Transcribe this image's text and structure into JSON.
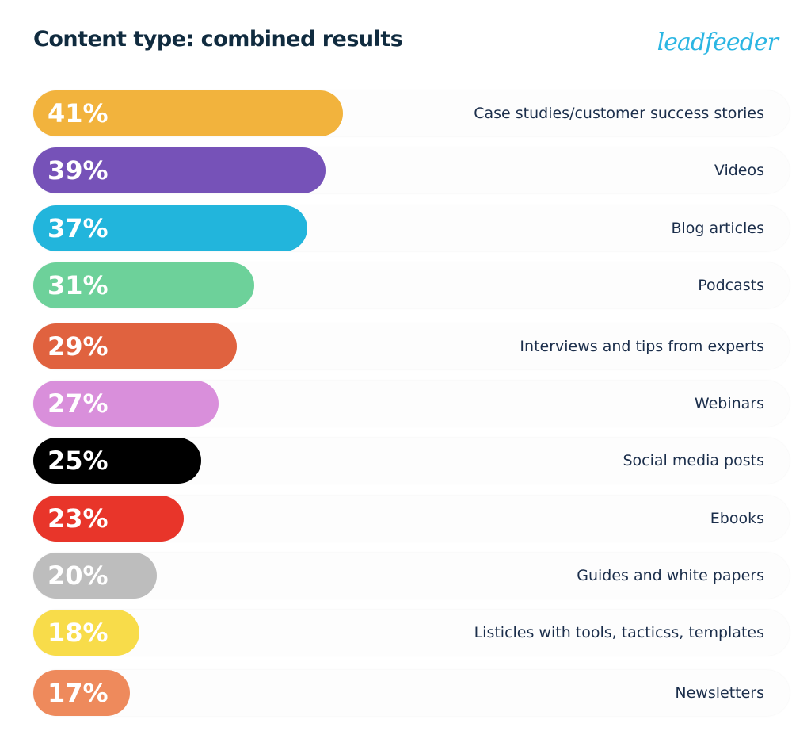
{
  "chart_data": {
    "type": "bar",
    "orientation": "horizontal",
    "title": "Content type: combined results",
    "logo_text": "leadfeeder",
    "categories": [
      "Case studies/customer success stories",
      "Videos",
      "Blog articles",
      "Podcasts",
      "Interviews and tips from experts",
      "Webinars",
      "Social media posts",
      "Ebooks",
      "Guides and white papers",
      "Listicles with tools, tacticss, templates",
      "Newsletters"
    ],
    "values": [
      41,
      39,
      37,
      31,
      29,
      27,
      25,
      23,
      20,
      18,
      17
    ],
    "labels": [
      "41%",
      "39%",
      "37%",
      "31%",
      "29%",
      "27%",
      "25%",
      "23%",
      "20%",
      "18%",
      "17%"
    ],
    "colors": [
      "#F2B33D",
      "#7652B8",
      "#22B5DC",
      "#6DD19A",
      "#E0623F",
      "#D98FDB",
      "#000000",
      "#E8352A",
      "#BDBDBD",
      "#F8DC4A",
      "#EE8A5C"
    ],
    "unit": "%",
    "grid": false,
    "legend": "none"
  }
}
